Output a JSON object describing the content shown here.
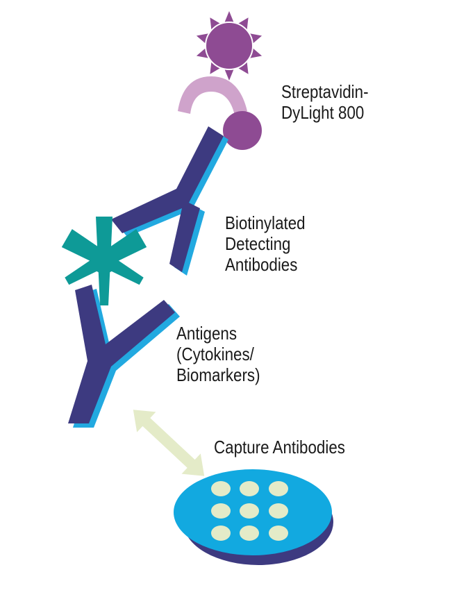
{
  "colors": {
    "antibody": "#3d3a80",
    "antibody_shadow": "#22a9e0",
    "antigen": "#0e9a97",
    "dye": "#8e4b93",
    "dye_ring": "#cfa3cb",
    "arrow": "#e4ebc8",
    "plate_top": "#12a9e0",
    "plate_side": "#3d3a80",
    "spot": "#e4ebc8"
  },
  "icons": {
    "dye": "star-sun-icon",
    "detecting_antibody": "y-antibody-icon",
    "antigen": "asterisk-antigen-icon",
    "capture_antibody": "y-antibody-icon",
    "arrow": "double-arrow-icon",
    "plate": "array-plate-icon"
  },
  "labels": {
    "streptavidin": [
      "Streptavidin-",
      "DyLight 800"
    ],
    "detecting": [
      "Biotinylated",
      "Detecting",
      "Antibodies"
    ],
    "antigens": [
      "Antigens",
      "(Cytokines/",
      "Biomarkers)"
    ],
    "capture": [
      "Capture Antibodies"
    ]
  }
}
